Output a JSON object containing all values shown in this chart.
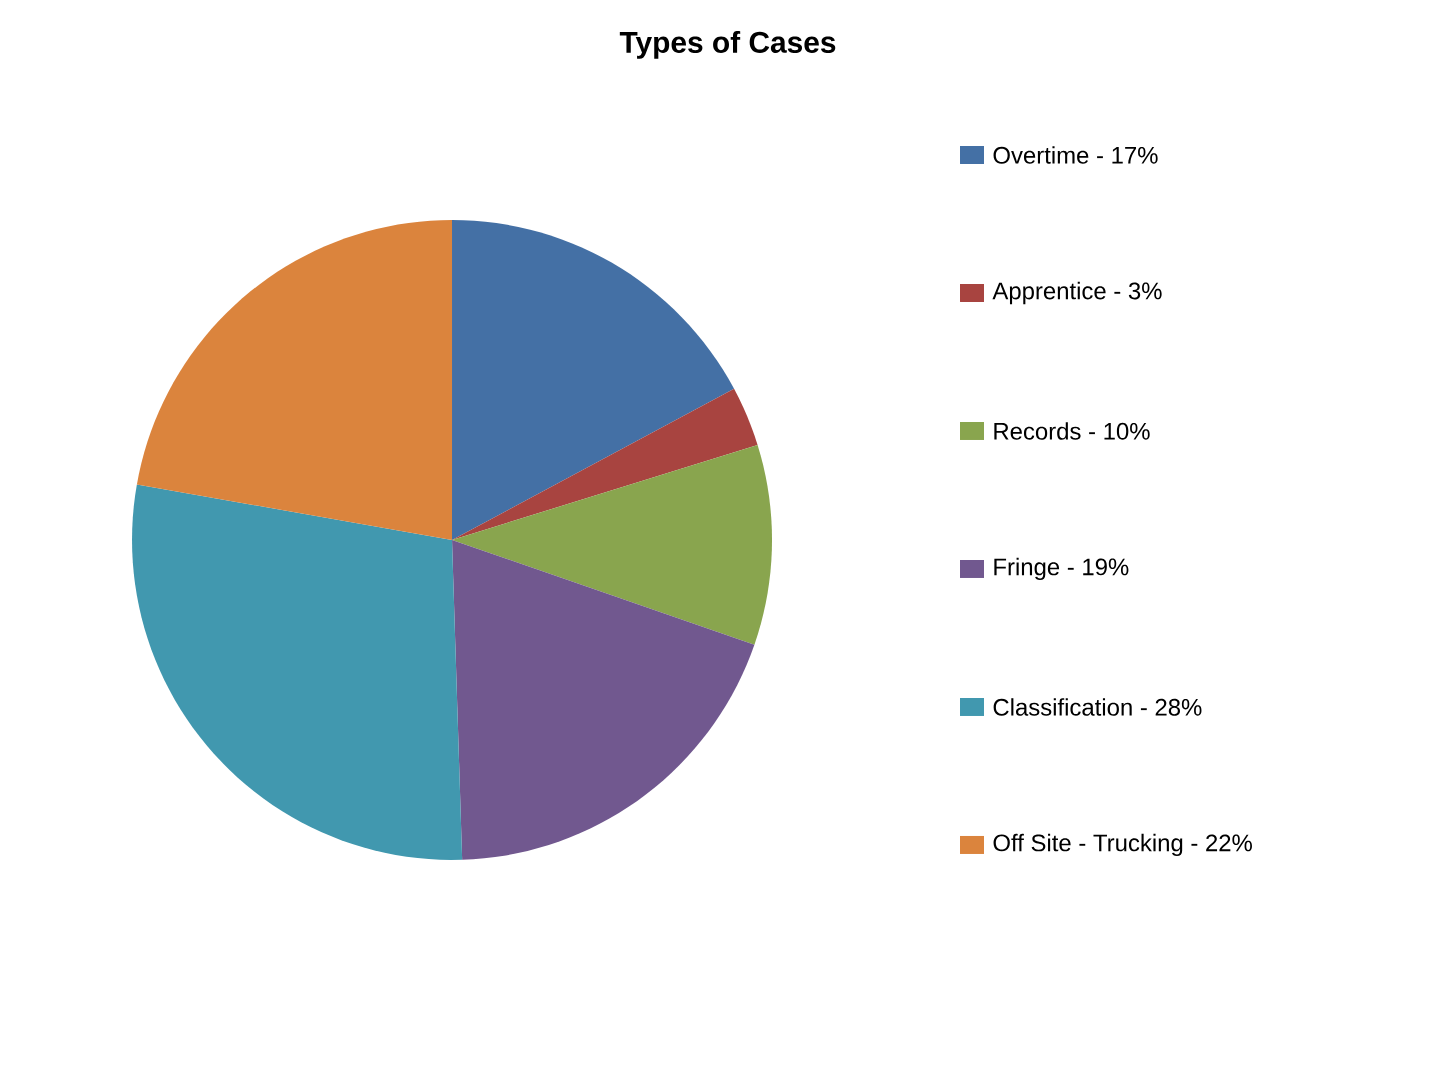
{
  "chart_data": {
    "type": "pie",
    "title": "Types of Cases",
    "categories": [
      "Overtime - 17%",
      "Apprentice - 3%",
      "Records - 10%",
      "Fringe - 19%",
      "Classification - 28%",
      "Off Site - Trucking - 22%"
    ],
    "values": [
      17,
      3,
      10,
      19,
      28,
      22
    ],
    "colors": [
      "#4470a5",
      "#a84440",
      "#89a54e",
      "#71588f",
      "#4198af",
      "#db843d"
    ],
    "legend": "right"
  }
}
